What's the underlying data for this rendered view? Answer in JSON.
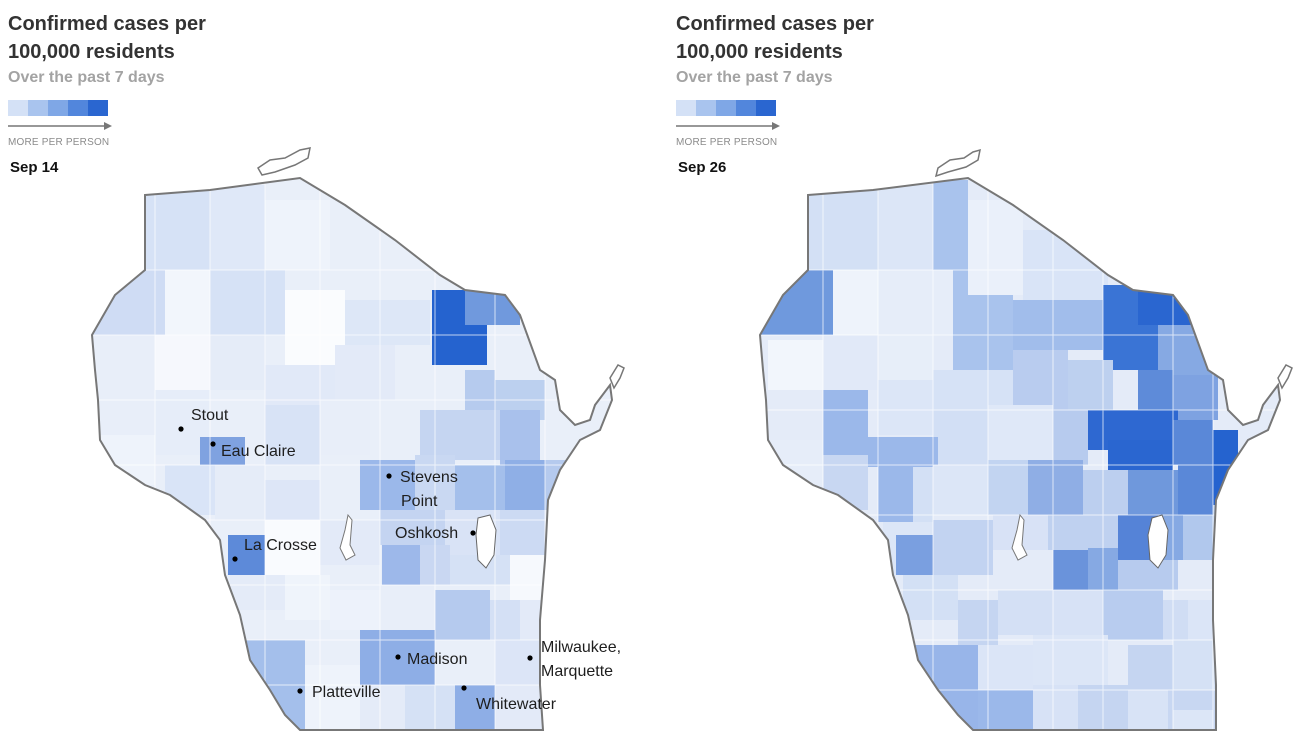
{
  "legend": {
    "colors": [
      "#d4e1f6",
      "#a9c4ee",
      "#7fa7e6",
      "#5286dc",
      "#2a66d0"
    ],
    "caption": "MORE PER PERSON"
  },
  "maps": [
    {
      "title_line1": "Confirmed cases per",
      "title_line2": "100,000 residents",
      "subtitle": "Over the past 7 days",
      "date": "Sep 14",
      "cities": [
        {
          "key": "stout",
          "name": "Stout"
        },
        {
          "key": "eau-claire",
          "name": "Eau Claire"
        },
        {
          "key": "stevens-point",
          "name": "Stevens",
          "name2": "Point"
        },
        {
          "key": "oshkosh",
          "name": "Oshkosh"
        },
        {
          "key": "la-crosse",
          "name": "La Crosse"
        },
        {
          "key": "milwaukee",
          "name": "Milwaukee,",
          "name2": "Marquette"
        },
        {
          "key": "madison",
          "name": "Madison"
        },
        {
          "key": "platteville",
          "name": "Platteville"
        },
        {
          "key": "whitewater",
          "name": "Whitewater"
        }
      ]
    },
    {
      "title_line1": "Confirmed cases per",
      "title_line2": "100,000 residents",
      "subtitle": "Over the past 7 days",
      "date": "Sep 26",
      "cities": []
    }
  ]
}
